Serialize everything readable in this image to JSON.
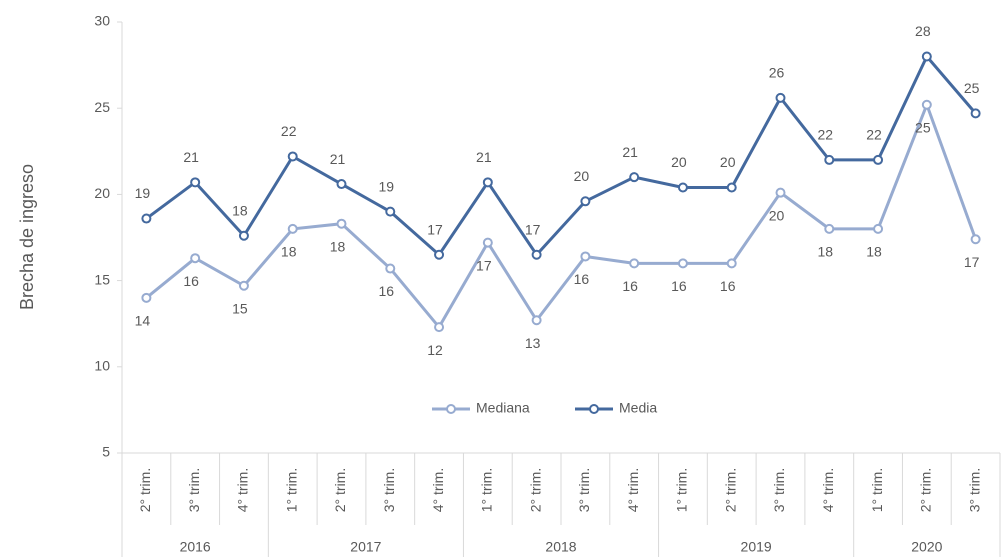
{
  "chart_data": {
    "type": "line",
    "y_label": "Brecha de ingreso",
    "groups": [
      {
        "name": "2016",
        "categories": [
          "2° trim.",
          "3° trim.",
          "4° trim."
        ]
      },
      {
        "name": "2017",
        "categories": [
          "1° trim.",
          "2° trim.",
          "3° trim.",
          "4° trim."
        ]
      },
      {
        "name": "2018",
        "categories": [
          "1° trim.",
          "2° trim.",
          "3° trim.",
          "4° trim."
        ]
      },
      {
        "name": "2019",
        "categories": [
          "1° trim.",
          "2° trim.",
          "3° trim.",
          "4° trim."
        ]
      },
      {
        "name": "2020",
        "categories": [
          "1° trim.",
          "2° trim.",
          "3° trim."
        ]
      }
    ],
    "series": [
      {
        "name": "Mediana",
        "color": "#97abd0",
        "values": [
          14.0,
          16.3,
          14.7,
          18.0,
          18.3,
          15.7,
          12.3,
          17.2,
          12.7,
          16.4,
          16.0,
          16.0,
          16.0,
          20.1,
          18.0,
          18.0,
          25.2,
          17.4
        ],
        "value_labels": [
          "14",
          "16",
          "15",
          "18",
          "18",
          "16",
          "12",
          "17",
          "13",
          "16",
          "16",
          "16",
          "16",
          "20",
          "18",
          "18",
          "25",
          "17"
        ]
      },
      {
        "name": "Media",
        "color": "#44699e",
        "values": [
          18.6,
          20.7,
          17.6,
          22.2,
          20.6,
          19.0,
          16.5,
          20.7,
          16.5,
          19.6,
          21.0,
          20.4,
          20.4,
          25.6,
          22.0,
          22.0,
          28.0,
          24.7
        ],
        "value_labels": [
          "19",
          "21",
          "18",
          "22",
          "21",
          "19",
          "17",
          "21",
          "17",
          "20",
          "21",
          "20",
          "20",
          "26",
          "22",
          "22",
          "28",
          "25"
        ]
      }
    ],
    "ylim": [
      5,
      30
    ],
    "yticks": [
      5,
      10,
      15,
      20,
      25,
      30
    ],
    "legend": "center"
  }
}
